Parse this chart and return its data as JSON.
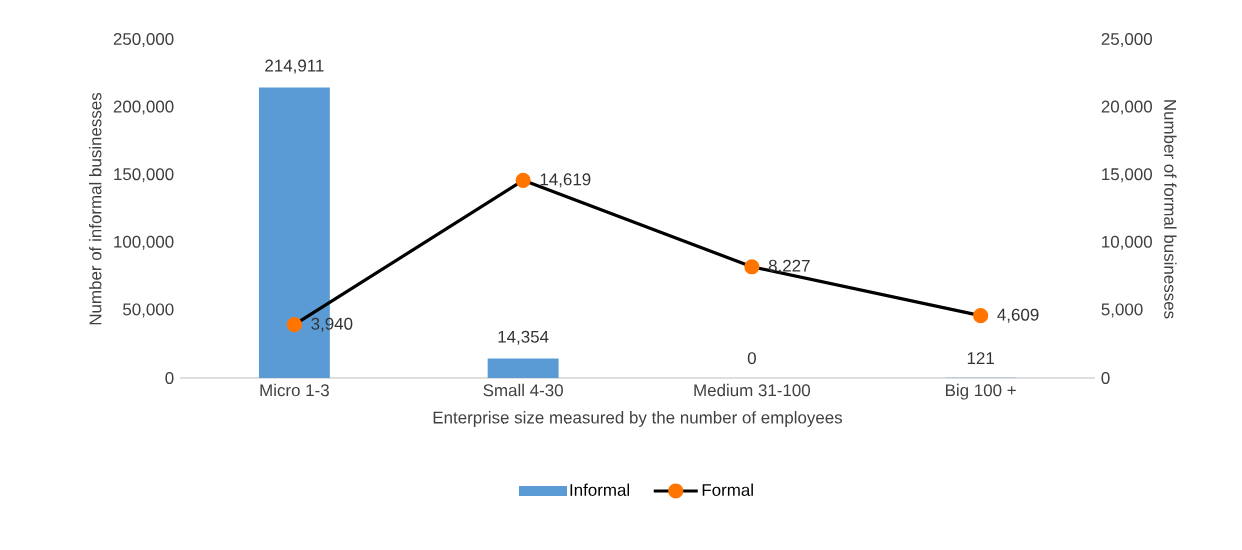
{
  "chart_data": {
    "type": "bar",
    "xlabel": "Enterprise size measured by the number of employees",
    "ylabel": "Number of informal businesses",
    "y2label": "Number of formal businesses",
    "categories": [
      "Micro 1-3",
      "Small 4-30",
      "Medium 31-100",
      "Big 100 +"
    ],
    "series": [
      {
        "name": "Informal",
        "color": "#5b9bd5",
        "values": [
          214911,
          14354,
          0,
          121
        ],
        "value_labels": [
          "214,911",
          "14,354",
          "0",
          "121"
        ]
      },
      {
        "name": "Formal",
        "type": "line",
        "axis": "y2",
        "color": "#000000",
        "marker": "circle",
        "values": [
          3940,
          14619,
          8227,
          4609
        ],
        "value_labels": [
          "3,940",
          "14,619",
          "8,227",
          "4,609"
        ]
      }
    ],
    "ylim": [
      0,
      250000
    ],
    "yticks": [
      {
        "value": 0,
        "label": "0"
      },
      {
        "value": 50000,
        "label": "50,000"
      },
      {
        "value": 100000,
        "label": "100,000"
      },
      {
        "value": 150000,
        "label": "150,000"
      },
      {
        "value": 200000,
        "label": "200,000"
      },
      {
        "value": 250000,
        "label": "250,000"
      }
    ],
    "y2lim": [
      0,
      25000
    ],
    "y2ticks": [
      {
        "value": 0,
        "label": "0"
      },
      {
        "value": 5000,
        "label": "5,000"
      },
      {
        "value": 10000,
        "label": "10,000"
      },
      {
        "value": 15000,
        "label": "15,000"
      },
      {
        "value": 20000,
        "label": "20,000"
      },
      {
        "value": 25000,
        "label": "25,000"
      }
    ],
    "legend": "bottom"
  }
}
